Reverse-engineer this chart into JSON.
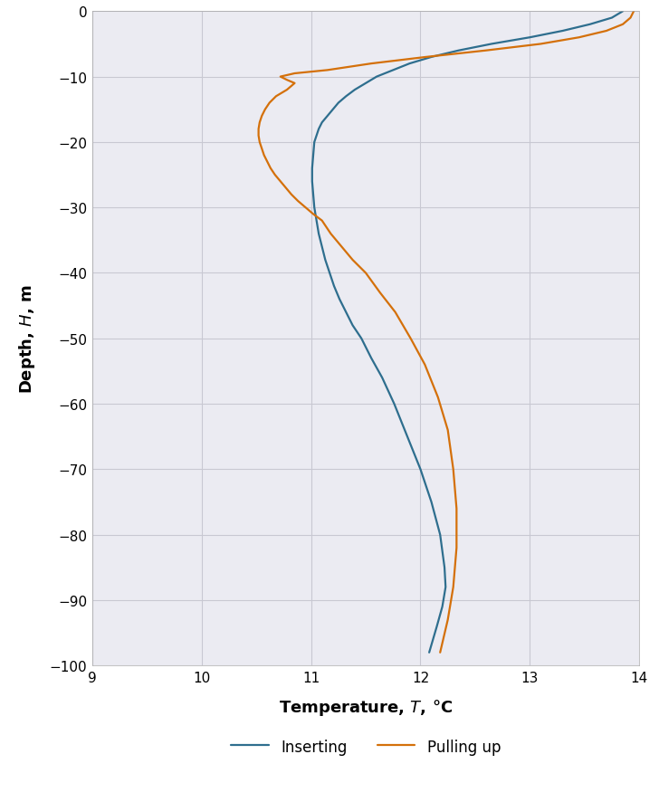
{
  "inserting_T": [
    13.85,
    13.75,
    13.55,
    13.3,
    13.0,
    12.65,
    12.35,
    12.1,
    11.9,
    11.75,
    11.6,
    11.5,
    11.4,
    11.32,
    11.25,
    11.2,
    11.15,
    11.1,
    11.07,
    11.05,
    11.03,
    11.02,
    11.01,
    11.01,
    11.02,
    11.03,
    11.05,
    11.07,
    11.1,
    11.13,
    11.17,
    11.21,
    11.26,
    11.32,
    11.38,
    11.46,
    11.55,
    11.65,
    11.76,
    11.88,
    12.0,
    12.1,
    12.18,
    12.22,
    12.23,
    12.2,
    12.15,
    12.08
  ],
  "inserting_H": [
    0,
    -1,
    -2,
    -3,
    -4,
    -5,
    -6,
    -7,
    -8,
    -9,
    -10,
    -11,
    -12,
    -13,
    -14,
    -15,
    -16,
    -17,
    -18,
    -19,
    -20,
    -22,
    -24,
    -26,
    -28,
    -30,
    -32,
    -34,
    -36,
    -38,
    -40,
    -42,
    -44,
    -46,
    -48,
    -50,
    -53,
    -56,
    -60,
    -65,
    -70,
    -75,
    -80,
    -85,
    -88,
    -91,
    -94,
    -98
  ],
  "pulling_T": [
    13.95,
    13.92,
    13.85,
    13.7,
    13.45,
    13.1,
    12.6,
    12.05,
    11.55,
    11.15,
    10.85,
    10.72,
    10.78,
    10.85,
    10.78,
    10.68,
    10.62,
    10.58,
    10.55,
    10.53,
    10.52,
    10.52,
    10.53,
    10.55,
    10.57,
    10.6,
    10.63,
    10.67,
    10.72,
    10.77,
    10.82,
    10.88,
    10.95,
    11.02,
    11.1,
    11.18,
    11.28,
    11.38,
    11.5,
    11.63,
    11.77,
    11.91,
    12.04,
    12.16,
    12.25,
    12.3,
    12.33,
    12.33,
    12.3,
    12.25,
    12.18
  ],
  "pulling_H": [
    0,
    -1,
    -2,
    -3,
    -4,
    -5,
    -6,
    -7,
    -8,
    -9,
    -9.5,
    -10,
    -10.5,
    -11,
    -12,
    -13,
    -14,
    -15,
    -16,
    -17,
    -18,
    -19,
    -20,
    -21,
    -22,
    -23,
    -24,
    -25,
    -26,
    -27,
    -28,
    -29,
    -30,
    -31,
    -32,
    -34,
    -36,
    -38,
    -40,
    -43,
    -46,
    -50,
    -54,
    -59,
    -64,
    -70,
    -76,
    -82,
    -88,
    -93,
    -98
  ],
  "inserting_color": "#2e6e8e",
  "pulling_color": "#d4700a",
  "xlim": [
    9,
    14
  ],
  "ylim": [
    -100,
    0
  ],
  "xticks": [
    9,
    10,
    11,
    12,
    13,
    14
  ],
  "yticks": [
    0,
    -10,
    -20,
    -30,
    -40,
    -50,
    -60,
    -70,
    -80,
    -90,
    -100
  ],
  "legend_inserting": "Inserting",
  "legend_pulling": "Pulling up",
  "grid_color": "#c8c8d2",
  "background_color": "#ebebf2",
  "linewidth": 1.6,
  "tick_fontsize": 11,
  "label_fontsize": 13
}
